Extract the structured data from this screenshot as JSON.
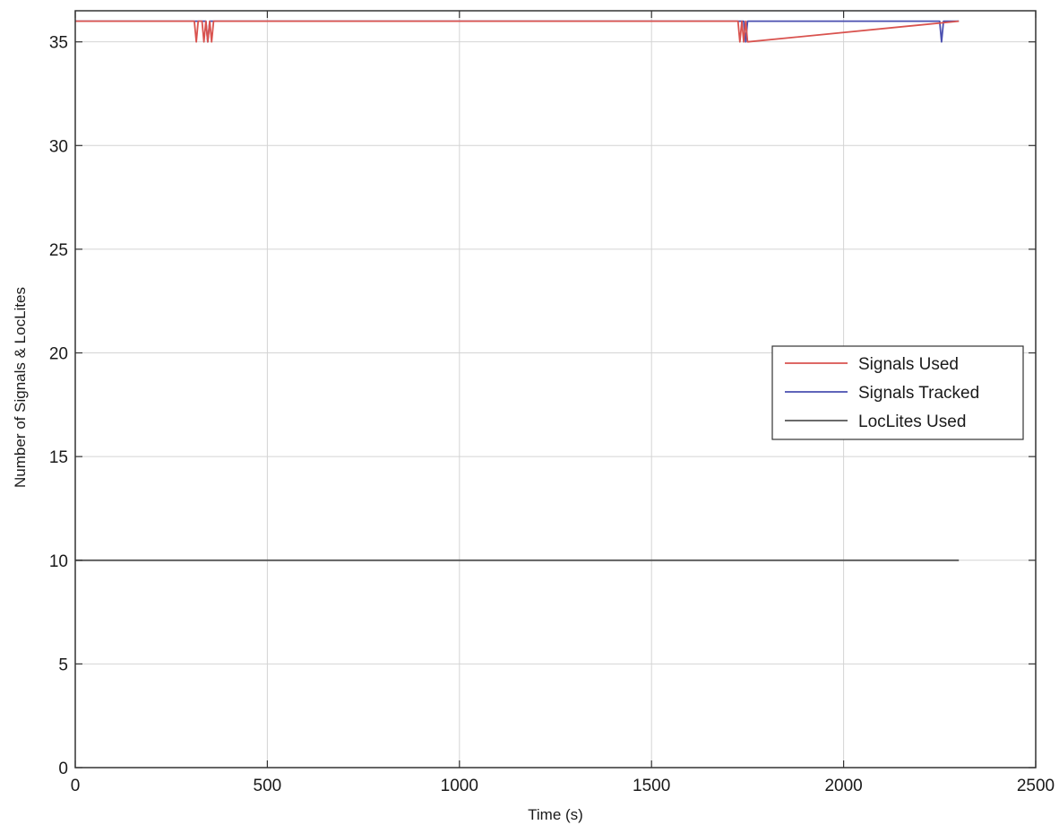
{
  "chart_data": {
    "type": "line",
    "title": "",
    "xlabel": "Time (s)",
    "ylabel": "Number of Signals & LocLites",
    "xlim": [
      0,
      2500
    ],
    "ylim": [
      0,
      36.5
    ],
    "xticks": [
      0,
      500,
      1000,
      1500,
      2000,
      2500
    ],
    "yticks": [
      0,
      5,
      10,
      15,
      20,
      25,
      30,
      35
    ],
    "xtick_labels": [
      "0",
      "500",
      "1000",
      "1500",
      "2000",
      "2500"
    ],
    "ytick_labels": [
      "0",
      "5",
      "10",
      "15",
      "20",
      "25",
      "30",
      "35"
    ],
    "grid": true,
    "legend_position": "center-right",
    "colors": {
      "signals_used": "#d9534f",
      "signals_tracked": "#4a4fb0",
      "loclites_used": "#555555"
    },
    "series": [
      {
        "name": "Signals Used",
        "color": "#d9534f",
        "x": [
          0,
          310,
          315,
          320,
          330,
          335,
          340,
          345,
          350,
          355,
          360,
          1725,
          1730,
          1735,
          1740,
          1745,
          1750,
          2300
        ],
        "y": [
          36,
          36,
          35,
          36,
          36,
          35,
          36,
          35,
          36,
          35,
          36,
          36,
          35,
          36,
          35,
          36,
          35,
          36
        ]
      },
      {
        "name": "Signals Tracked",
        "color": "#4a4fb0",
        "x": [
          0,
          340,
          345,
          350,
          1740,
          1745,
          1750,
          2250,
          2255,
          2260,
          2300
        ],
        "y": [
          36,
          36,
          35,
          36,
          36,
          35,
          36,
          36,
          35,
          36,
          36
        ]
      },
      {
        "name": "LocLites Used",
        "color": "#555555",
        "x": [
          0,
          2300
        ],
        "y": [
          10,
          10
        ]
      }
    ]
  }
}
